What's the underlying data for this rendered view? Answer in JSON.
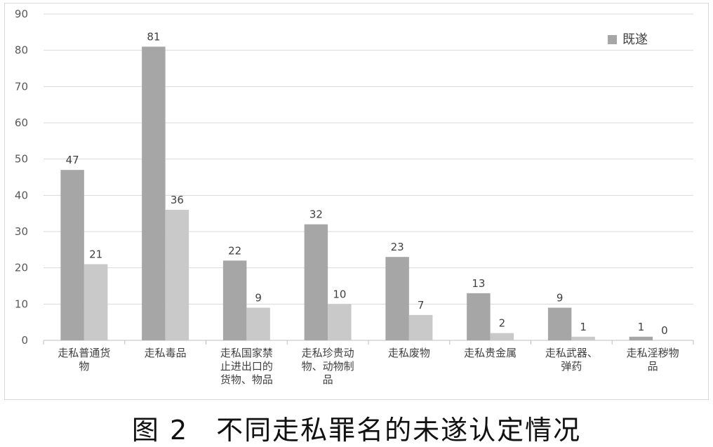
{
  "caption": "图 2　不同走私罪名的未遂认定情况",
  "chart_data": {
    "type": "bar",
    "categories": [
      [
        "走私普通货",
        "物"
      ],
      [
        "走私毒品"
      ],
      [
        "走私国家禁",
        "止进出口的",
        "货物、物品"
      ],
      [
        "走私珍贵动",
        "物、动物制",
        "品"
      ],
      [
        "走私废物"
      ],
      [
        "走私贵金属"
      ],
      [
        "走私武器、",
        "弹药"
      ],
      [
        "走私淫秽物",
        "品"
      ]
    ],
    "series": [
      {
        "name": "既遂",
        "values": [
          47,
          81,
          22,
          32,
          23,
          13,
          9,
          1
        ],
        "color": "#a6a6a6"
      },
      {
        "values": [
          21,
          36,
          9,
          10,
          7,
          2,
          1,
          0
        ],
        "color": "#c9c9c9"
      }
    ],
    "ylim": [
      0,
      90
    ],
    "yticks": [
      0,
      10,
      20,
      30,
      40,
      50,
      60,
      70,
      80,
      90
    ],
    "grid": true,
    "legend_position": "top-right",
    "data_labels": true
  }
}
